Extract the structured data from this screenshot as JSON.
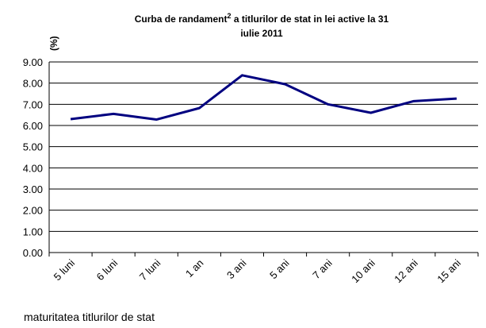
{
  "chart_data": {
    "type": "line",
    "title": [
      "Curba de randament",
      "2",
      " a titlurilor de stat in lei active  la 31",
      "iulie 2011"
    ],
    "y_label": "(%)",
    "x_label": "maturitatea titlurilor de stat",
    "categories": [
      "5 luni",
      "6 luni",
      "7 luni",
      "1 an",
      "3 ani",
      "5 ani",
      "7 ani",
      "10 ani",
      "12 ani",
      "15 ani"
    ],
    "series": [
      {
        "name": "randament",
        "color": "#000080",
        "values": [
          6.3,
          6.55,
          6.28,
          6.82,
          8.37,
          7.95,
          7.0,
          6.6,
          7.15,
          7.27
        ]
      }
    ],
    "ylim": [
      0,
      9
    ],
    "yticks": [
      {
        "value": 0,
        "label": "0.00"
      },
      {
        "value": 1,
        "label": "1.00"
      },
      {
        "value": 2,
        "label": "2.00"
      },
      {
        "value": 3,
        "label": "3.00"
      },
      {
        "value": 4,
        "label": "4.00"
      },
      {
        "value": 5,
        "label": "5.00"
      },
      {
        "value": 6,
        "label": "6.00"
      },
      {
        "value": 7,
        "label": "7.00"
      },
      {
        "value": 8,
        "label": "8.00"
      },
      {
        "value": 9,
        "label": "9.00"
      }
    ],
    "grid": true
  }
}
